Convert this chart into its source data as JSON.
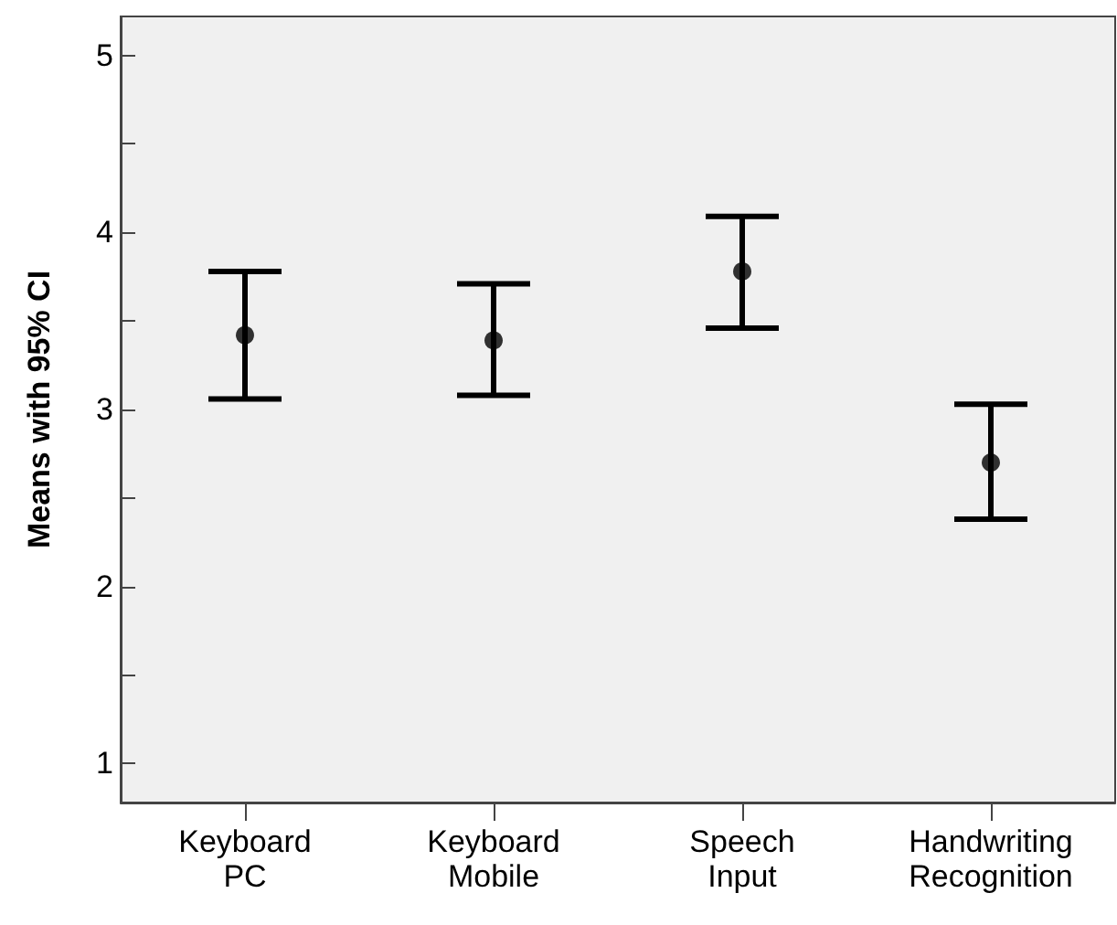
{
  "chart_data": {
    "type": "scatter",
    "ylabel": "Means with 95% CI",
    "categories": [
      "Keyboard PC",
      "Keyboard Mobile",
      "Speech Input",
      "Handwriting Recognition"
    ],
    "values": [
      3.42,
      3.39,
      3.78,
      2.7
    ],
    "errors": [
      [
        3.06,
        3.78
      ],
      [
        3.08,
        3.71
      ],
      [
        3.46,
        4.09
      ],
      [
        2.38,
        3.03
      ]
    ],
    "color": "#000000",
    "marker": "circle",
    "ylim": [
      0.78,
      5.22
    ],
    "yticks": [
      1,
      {
        "value": 1.5,
        "label": null
      },
      2,
      {
        "value": 2.5,
        "label": null
      },
      3,
      {
        "value": 3.5,
        "label": null
      },
      4,
      {
        "value": 4.5,
        "label": null
      },
      5
    ],
    "grid": false
  }
}
